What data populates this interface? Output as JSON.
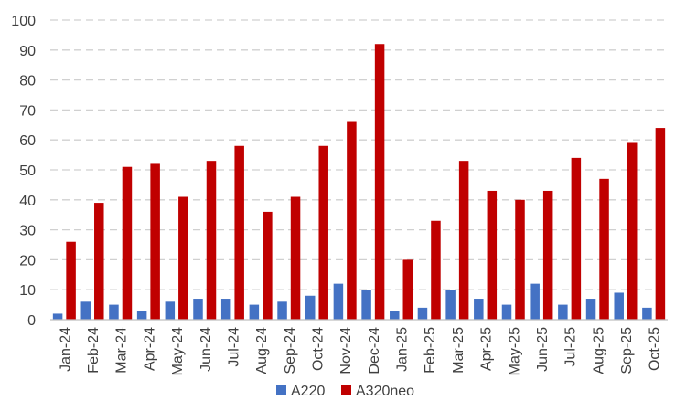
{
  "chart_data": {
    "type": "bar",
    "categories": [
      "Jan-24",
      "Feb-24",
      "Mar-24",
      "Apr-24",
      "May-24",
      "Jun-24",
      "Jul-24",
      "Aug-24",
      "Sep-24",
      "Oct-24",
      "Nov-24",
      "Dec-24",
      "Jan-25",
      "Feb-25",
      "Mar-25",
      "Apr-25",
      "May-25",
      "Jun-25",
      "Jul-25",
      "Aug-25",
      "Sep-25",
      "Oct-25"
    ],
    "series": [
      {
        "name": "A220",
        "color": "#4472C4",
        "values": [
          2,
          6,
          5,
          3,
          6,
          7,
          7,
          5,
          6,
          8,
          12,
          10,
          3,
          4,
          10,
          7,
          5,
          12,
          5,
          7,
          9,
          4
        ]
      },
      {
        "name": "A320neo",
        "color": "#C00000",
        "values": [
          26,
          39,
          51,
          52,
          41,
          53,
          58,
          36,
          41,
          58,
          66,
          92,
          20,
          33,
          53,
          43,
          40,
          43,
          54,
          47,
          59,
          64
        ]
      }
    ],
    "ylim": [
      0,
      100
    ],
    "yticks": [
      0,
      10,
      20,
      30,
      40,
      50,
      60,
      70,
      80,
      90,
      100
    ],
    "grid": true,
    "legend": "bottom-center",
    "title": "",
    "xlabel": "",
    "ylabel": ""
  }
}
